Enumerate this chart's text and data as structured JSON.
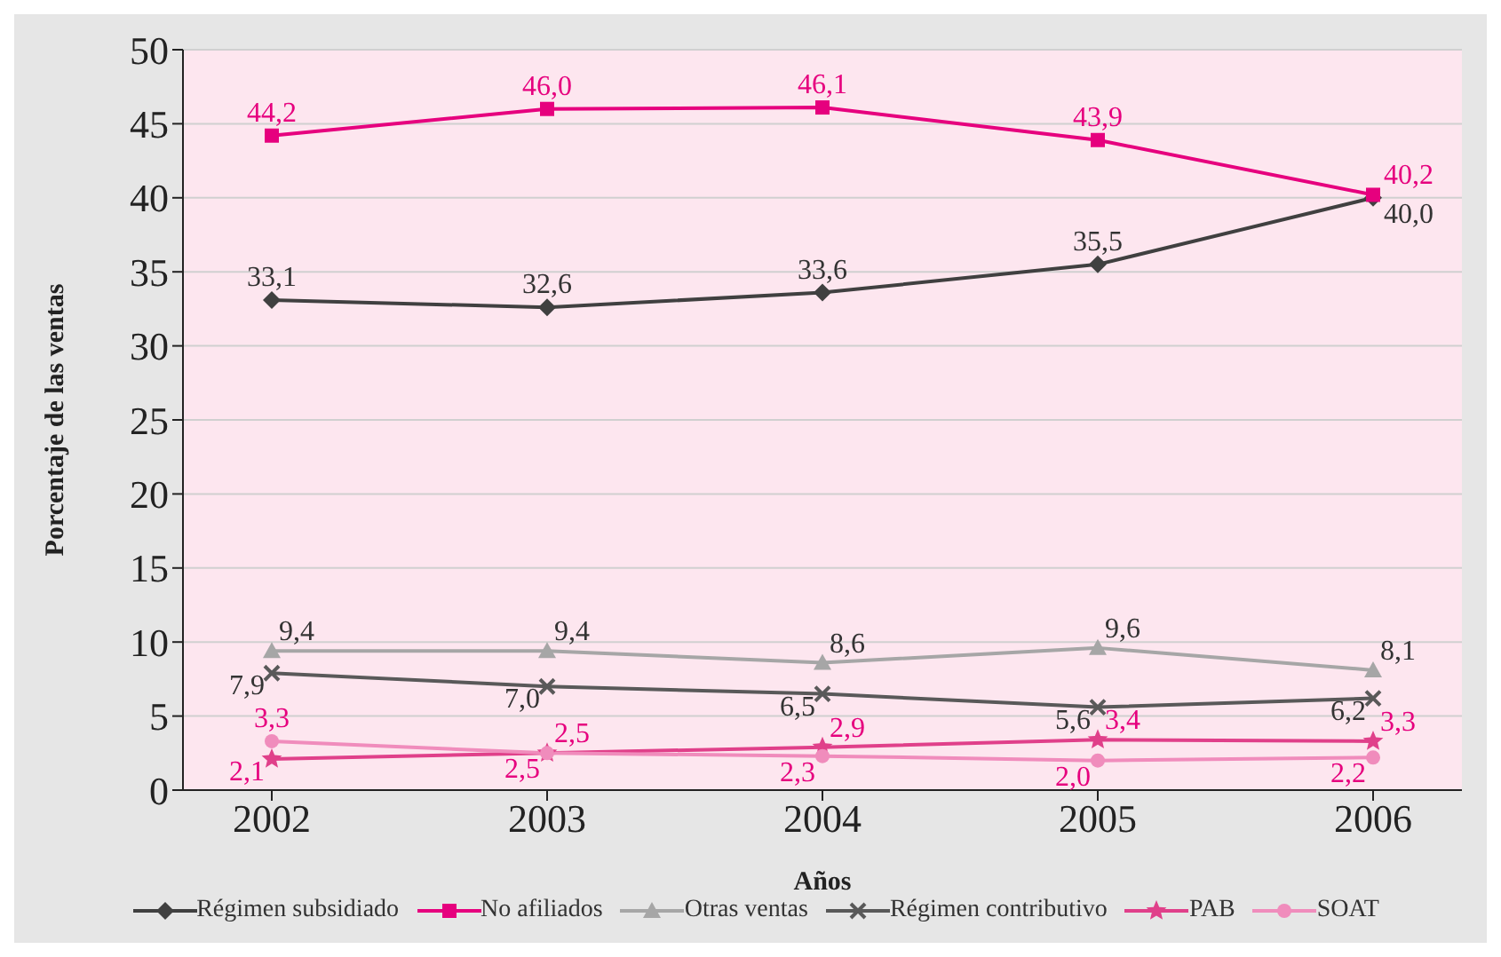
{
  "chart_data": {
    "type": "line",
    "xlabel": "Años",
    "ylabel": "Porcentaje de las ventas",
    "categories": [
      "2002",
      "2003",
      "2004",
      "2005",
      "2006"
    ],
    "ylim": [
      0,
      50
    ],
    "yticks": [
      0,
      5,
      10,
      15,
      20,
      25,
      30,
      35,
      40,
      45,
      50
    ],
    "grid": "y",
    "legend": "bottom",
    "series": [
      {
        "name": "Régimen subsidiado",
        "color": "#404040",
        "marker": "diamond",
        "values": [
          33.1,
          32.6,
          33.6,
          35.5,
          40.0
        ],
        "value_labels": [
          "33,1",
          "32,6",
          "33,6",
          "35,5",
          "40,0"
        ]
      },
      {
        "name": "No afiliados",
        "color": "#e6007e",
        "marker": "square",
        "values": [
          44.2,
          46.0,
          46.1,
          43.9,
          40.2
        ],
        "value_labels": [
          "44,2",
          "46,0",
          "46,1",
          "43,9",
          "40,2"
        ]
      },
      {
        "name": "Otras ventas",
        "color": "#a6a6a6",
        "marker": "triangle",
        "values": [
          9.4,
          9.4,
          8.6,
          9.6,
          8.1
        ],
        "value_labels": [
          "9,4",
          "9,4",
          "8,6",
          "9,6",
          "8,1"
        ]
      },
      {
        "name": "Régimen contributivo",
        "color": "#595959",
        "marker": "cross",
        "values": [
          7.9,
          7.0,
          6.5,
          5.6,
          6.2
        ],
        "value_labels": [
          "7,9",
          "7,0",
          "6,5",
          "5,6",
          "6,2"
        ]
      },
      {
        "name": "PAB",
        "color": "#e0408a",
        "marker": "star",
        "values": [
          2.1,
          2.5,
          2.9,
          3.4,
          3.3
        ],
        "value_labels": [
          "2,1",
          "2,5",
          "2,9",
          "3,4",
          "3,3"
        ]
      },
      {
        "name": "SOAT",
        "color": "#f08cbc",
        "marker": "circle",
        "values": [
          3.3,
          2.5,
          2.3,
          2.0,
          2.2
        ],
        "value_labels": [
          "3,3",
          "2,5",
          "2,3",
          "2,0",
          "2,2"
        ]
      }
    ]
  }
}
